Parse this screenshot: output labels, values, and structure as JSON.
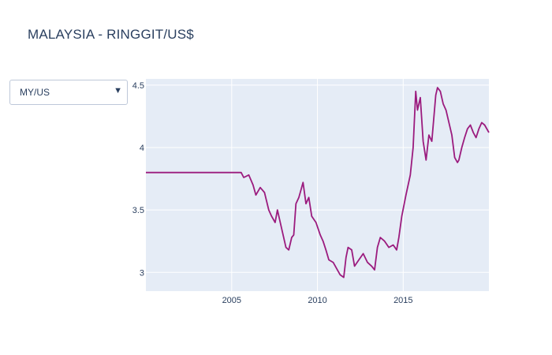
{
  "title": "MALAYSIA - RINGGIT/US$",
  "dropdown": {
    "selected": "MY/US",
    "arrow_icon": "triangle-down-icon"
  },
  "colors": {
    "plot_bg": "#e5ecf6",
    "grid": "#ffffff",
    "line": "#9b1b7e",
    "text": "#2a3f5f"
  },
  "chart_data": {
    "type": "line",
    "title": "MALAYSIA - RINGGIT/US$",
    "xlabel": "",
    "ylabel": "",
    "xlim": [
      "2000-01-01",
      "2019-12-31"
    ],
    "ylim": [
      2.85,
      4.55
    ],
    "xticks": [
      "2005",
      "2010",
      "2015"
    ],
    "yticks": [
      "3",
      "3.5",
      "4",
      "4.5"
    ],
    "grid": true,
    "legend": "none",
    "series": [
      {
        "x": [
          "2000-01-01",
          "2005-07-21",
          "2005-09-15",
          "2006-01-01",
          "2006-04-01",
          "2006-06-01",
          "2006-09-01",
          "2006-12-01",
          "2007-03-01",
          "2007-05-01",
          "2007-07-15",
          "2007-09-01",
          "2007-12-01",
          "2008-03-01",
          "2008-05-01",
          "2008-07-01",
          "2008-08-15",
          "2008-10-01",
          "2008-12-01",
          "2009-03-01",
          "2009-05-01",
          "2009-07-01",
          "2009-09-01",
          "2009-12-01",
          "2010-03-01",
          "2010-05-01",
          "2010-07-01",
          "2010-09-01",
          "2010-12-01",
          "2011-03-01",
          "2011-05-01",
          "2011-07-15",
          "2011-09-01",
          "2011-10-15",
          "2012-01-01",
          "2012-03-01",
          "2012-06-01",
          "2012-09-01",
          "2012-12-01",
          "2013-03-01",
          "2013-05-01",
          "2013-07-01",
          "2013-09-01",
          "2013-12-01",
          "2014-03-01",
          "2014-06-01",
          "2014-08-15",
          "2014-10-01",
          "2014-12-01",
          "2015-03-01",
          "2015-06-01",
          "2015-08-01",
          "2015-09-25",
          "2015-11-01",
          "2016-01-01",
          "2016-03-01",
          "2016-05-01",
          "2016-07-01",
          "2016-09-01",
          "2016-11-25",
          "2017-01-01",
          "2017-03-01",
          "2017-05-01",
          "2017-07-01",
          "2017-09-01",
          "2017-11-01",
          "2018-01-01",
          "2018-03-01",
          "2018-04-01",
          "2018-06-01",
          "2018-08-01",
          "2018-10-01",
          "2018-12-01",
          "2019-02-01",
          "2019-04-01",
          "2019-06-01",
          "2019-08-01",
          "2019-10-01",
          "2019-12-31"
        ],
        "y": [
          3.8,
          3.8,
          3.76,
          3.78,
          3.7,
          3.62,
          3.68,
          3.64,
          3.5,
          3.45,
          3.4,
          3.5,
          3.35,
          3.2,
          3.18,
          3.28,
          3.3,
          3.55,
          3.6,
          3.72,
          3.55,
          3.6,
          3.45,
          3.4,
          3.3,
          3.25,
          3.18,
          3.1,
          3.08,
          3.02,
          2.98,
          2.96,
          3.12,
          3.2,
          3.18,
          3.05,
          3.1,
          3.15,
          3.08,
          3.05,
          3.02,
          3.2,
          3.28,
          3.25,
          3.2,
          3.22,
          3.18,
          3.28,
          3.45,
          3.62,
          3.78,
          4.0,
          4.45,
          4.3,
          4.4,
          4.05,
          3.9,
          4.1,
          4.05,
          4.42,
          4.48,
          4.45,
          4.35,
          4.3,
          4.2,
          4.1,
          3.92,
          3.88,
          3.9,
          4.0,
          4.08,
          4.15,
          4.18,
          4.12,
          4.08,
          4.15,
          4.2,
          4.18,
          4.12
        ]
      }
    ]
  }
}
